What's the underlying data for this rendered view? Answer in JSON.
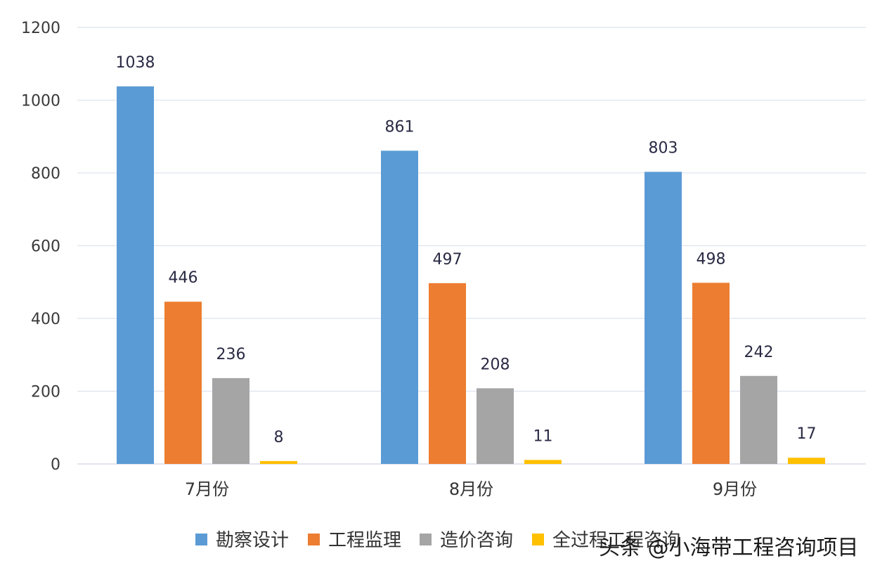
{
  "chart_data": {
    "type": "bar",
    "categories": [
      "7月份",
      "8月份",
      "9月份"
    ],
    "series": [
      {
        "name": "勘察设计",
        "values": [
          1038,
          861,
          803
        ],
        "color": "#5b9bd5"
      },
      {
        "name": "工程监理",
        "values": [
          446,
          497,
          498
        ],
        "color": "#ed7d31"
      },
      {
        "name": "造价咨询",
        "values": [
          236,
          208,
          242
        ],
        "color": "#a5a5a5"
      },
      {
        "name": "全过程工程咨询",
        "values": [
          8,
          11,
          17
        ],
        "color": "#ffc000"
      }
    ],
    "data_labels": [
      [
        "1038",
        "446",
        "236",
        "8"
      ],
      [
        "861",
        "497",
        "208",
        "11"
      ],
      [
        "803",
        "498",
        "242",
        "17"
      ]
    ],
    "yticks": [
      "0",
      "200",
      "400",
      "600",
      "800",
      "1000",
      "1200"
    ],
    "ylim": [
      0,
      1200
    ],
    "grid": true,
    "legend_position": "bottom",
    "title": "",
    "xlabel": "",
    "ylabel": ""
  },
  "watermark": {
    "text": "头条 @小海带工程咨询项目"
  }
}
